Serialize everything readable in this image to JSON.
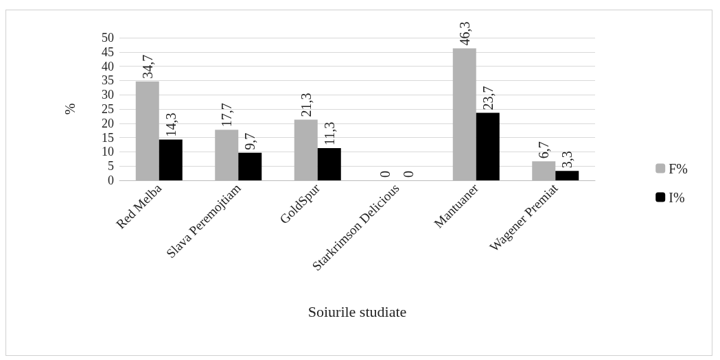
{
  "chart_data": {
    "type": "bar",
    "xlabel": "Soiurile studiate",
    "ylabel": "%",
    "categories": [
      "Red Melba",
      "Slava Peremojtiam",
      "GoldSpur",
      "Starkrimson Delicious",
      "Mantuaner",
      "Wagener Premiat"
    ],
    "series": [
      {
        "name": "F%",
        "color": "#b3b3b3",
        "values": [
          34.7,
          17.7,
          21.3,
          0,
          46.3,
          6.7
        ],
        "value_labels": [
          "34,7",
          "17,7",
          "21,3",
          "0",
          "46,3",
          "6,7"
        ]
      },
      {
        "name": "I%",
        "color": "#000000",
        "values": [
          14.3,
          9.7,
          11.3,
          0,
          23.7,
          3.3
        ],
        "value_labels": [
          "14,3",
          "9,7",
          "11,3",
          "0",
          "23,7",
          "3,3"
        ]
      }
    ],
    "ylim": [
      0,
      50
    ],
    "yticks": [
      0,
      5,
      10,
      15,
      20,
      25,
      30,
      35,
      40,
      45,
      50
    ],
    "grid": "y",
    "legend": "right"
  }
}
